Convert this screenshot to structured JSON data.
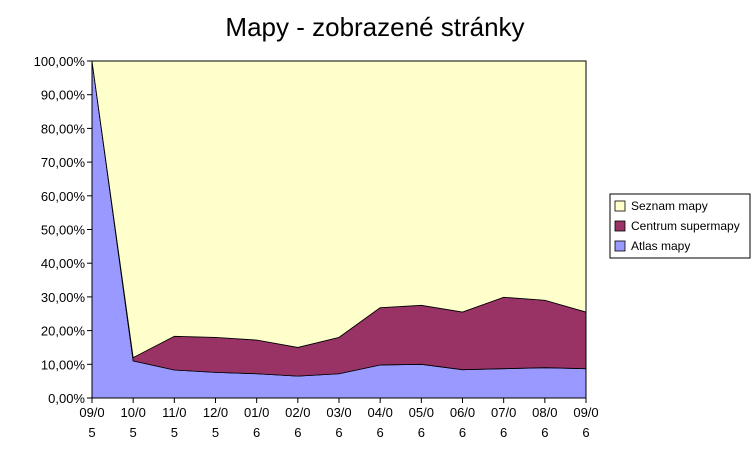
{
  "chart_data": {
    "type": "area",
    "stacked_percent": true,
    "title": "Mapy - zobrazené stránky",
    "x": [
      "09/05",
      "10/05",
      "11/05",
      "12/05",
      "01/06",
      "02/06",
      "03/06",
      "04/06",
      "05/06",
      "06/06",
      "07/06",
      "08/06",
      "09/06"
    ],
    "x_tick_lines": [
      [
        "09/0",
        "5"
      ],
      [
        "10/0",
        "5"
      ],
      [
        "11/0",
        "5"
      ],
      [
        "12/0",
        "5"
      ],
      [
        "01/0",
        "6"
      ],
      [
        "02/0",
        "6"
      ],
      [
        "03/0",
        "6"
      ],
      [
        "04/0",
        "6"
      ],
      [
        "05/0",
        "6"
      ],
      [
        "06/0",
        "6"
      ],
      [
        "07/0",
        "6"
      ],
      [
        "08/0",
        "6"
      ],
      [
        "09/0",
        "6"
      ]
    ],
    "y_ticks": [
      "0,00%",
      "10,00%",
      "20,00%",
      "30,00%",
      "40,00%",
      "50,00%",
      "60,00%",
      "70,00%",
      "80,00%",
      "90,00%",
      "100,00%"
    ],
    "ylim": [
      0,
      100
    ],
    "grid": false,
    "legend_position": "right",
    "series": [
      {
        "name": "Atlas mapy",
        "color": "#9999ff",
        "values": [
          100,
          11,
          8.3,
          7.6,
          7.2,
          6.5,
          7.2,
          9.8,
          10,
          8.4,
          8.7,
          9,
          8.7
        ]
      },
      {
        "name": "Centrum supermapy",
        "color": "#993366",
        "values": [
          0,
          1,
          10,
          10.4,
          10,
          8.5,
          10.8,
          17,
          17.5,
          17.1,
          21.2,
          20,
          16.8
        ]
      },
      {
        "name": "Seznam mapy",
        "color": "#ffffcc",
        "values": [
          0,
          88,
          81.7,
          82,
          82.8,
          85,
          82,
          73.2,
          72.5,
          74.5,
          70.1,
          71,
          74.5
        ]
      }
    ],
    "legend_order": [
      "Seznam mapy",
      "Centrum supermapy",
      "Atlas mapy"
    ]
  }
}
